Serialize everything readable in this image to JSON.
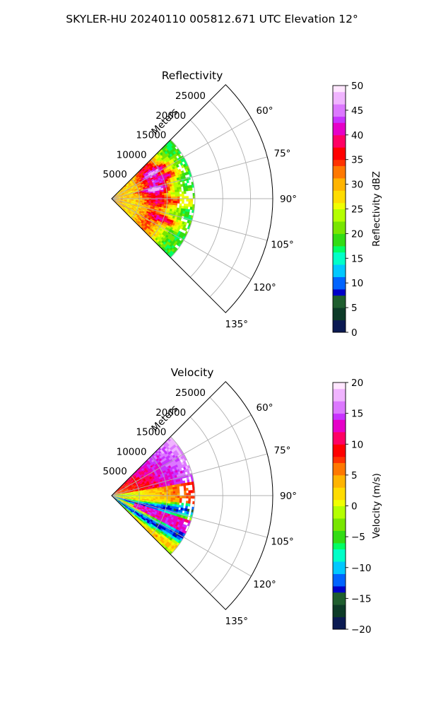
{
  "figure": {
    "suptitle": "SKYLER-HU  20240110  005812.671 UTC Elevation 12°"
  },
  "chart_data": [
    {
      "type": "heatmap",
      "projection": "polar-sector",
      "title": "Reflectivity",
      "radial_label": "Meters",
      "radial_ticks": [
        5000,
        10000,
        15000,
        20000,
        25000
      ],
      "radial_tick_labels": [
        "5000",
        "10000",
        "15000",
        "20000",
        "25000"
      ],
      "radial_max": 29000,
      "angle_range_deg": [
        45,
        135
      ],
      "angle_ticks_deg": [
        45,
        60,
        75,
        90,
        105,
        120,
        135
      ],
      "angle_tick_labels": [
        "60°",
        "75°",
        "90°",
        "105°",
        "120°",
        "135°"
      ],
      "grid": true,
      "data_range_m": [
        0,
        15000
      ],
      "colorbar": {
        "label": "Reflectivity dBZ",
        "range": [
          0,
          50
        ],
        "ticks": [
          "0",
          "5",
          "10",
          "15",
          "20",
          "25",
          "30",
          "35",
          "40",
          "45",
          "50"
        ]
      },
      "palette": [
        "#0b1a52",
        "#0d3b28",
        "#1f5e2f",
        "#0000c8",
        "#0064ff",
        "#00c8ff",
        "#00ffc8",
        "#00ff64",
        "#32dc14",
        "#78e600",
        "#b4ff00",
        "#f0ff00",
        "#ffdc00",
        "#ffb400",
        "#ff7800",
        "#ff3200",
        "#ff0000",
        "#ff0064",
        "#e600c8",
        "#c832ff",
        "#dc78ff",
        "#f0b4ff",
        "#ffe6ff"
      ]
    },
    {
      "type": "heatmap",
      "projection": "polar-sector",
      "title": "Velocity",
      "radial_label": "Meters",
      "radial_ticks": [
        5000,
        10000,
        15000,
        20000,
        25000
      ],
      "radial_tick_labels": [
        "5000",
        "10000",
        "15000",
        "20000",
        "25000"
      ],
      "radial_max": 29000,
      "angle_range_deg": [
        45,
        135
      ],
      "angle_ticks_deg": [
        45,
        60,
        75,
        90,
        105,
        120,
        135
      ],
      "angle_tick_labels": [
        "60°",
        "75°",
        "90°",
        "105°",
        "120°",
        "135°"
      ],
      "grid": true,
      "data_range_m": [
        0,
        15000
      ],
      "colorbar": {
        "label": "Velocity (m/s)",
        "range": [
          -20,
          20
        ],
        "ticks": [
          "−20",
          "−15",
          "−10",
          "−5",
          "0",
          "5",
          "10",
          "15",
          "20"
        ]
      },
      "palette": [
        "#0b1a52",
        "#0d3b28",
        "#1f5e2f",
        "#0000c8",
        "#0064ff",
        "#00c8ff",
        "#00ffc8",
        "#00ff64",
        "#32dc14",
        "#78e600",
        "#b4ff00",
        "#f0ff00",
        "#ffdc00",
        "#ffb400",
        "#ff7800",
        "#ff3200",
        "#ff0000",
        "#ff0064",
        "#e600c8",
        "#c832ff",
        "#dc78ff",
        "#f0b4ff",
        "#ffe6ff"
      ]
    }
  ]
}
